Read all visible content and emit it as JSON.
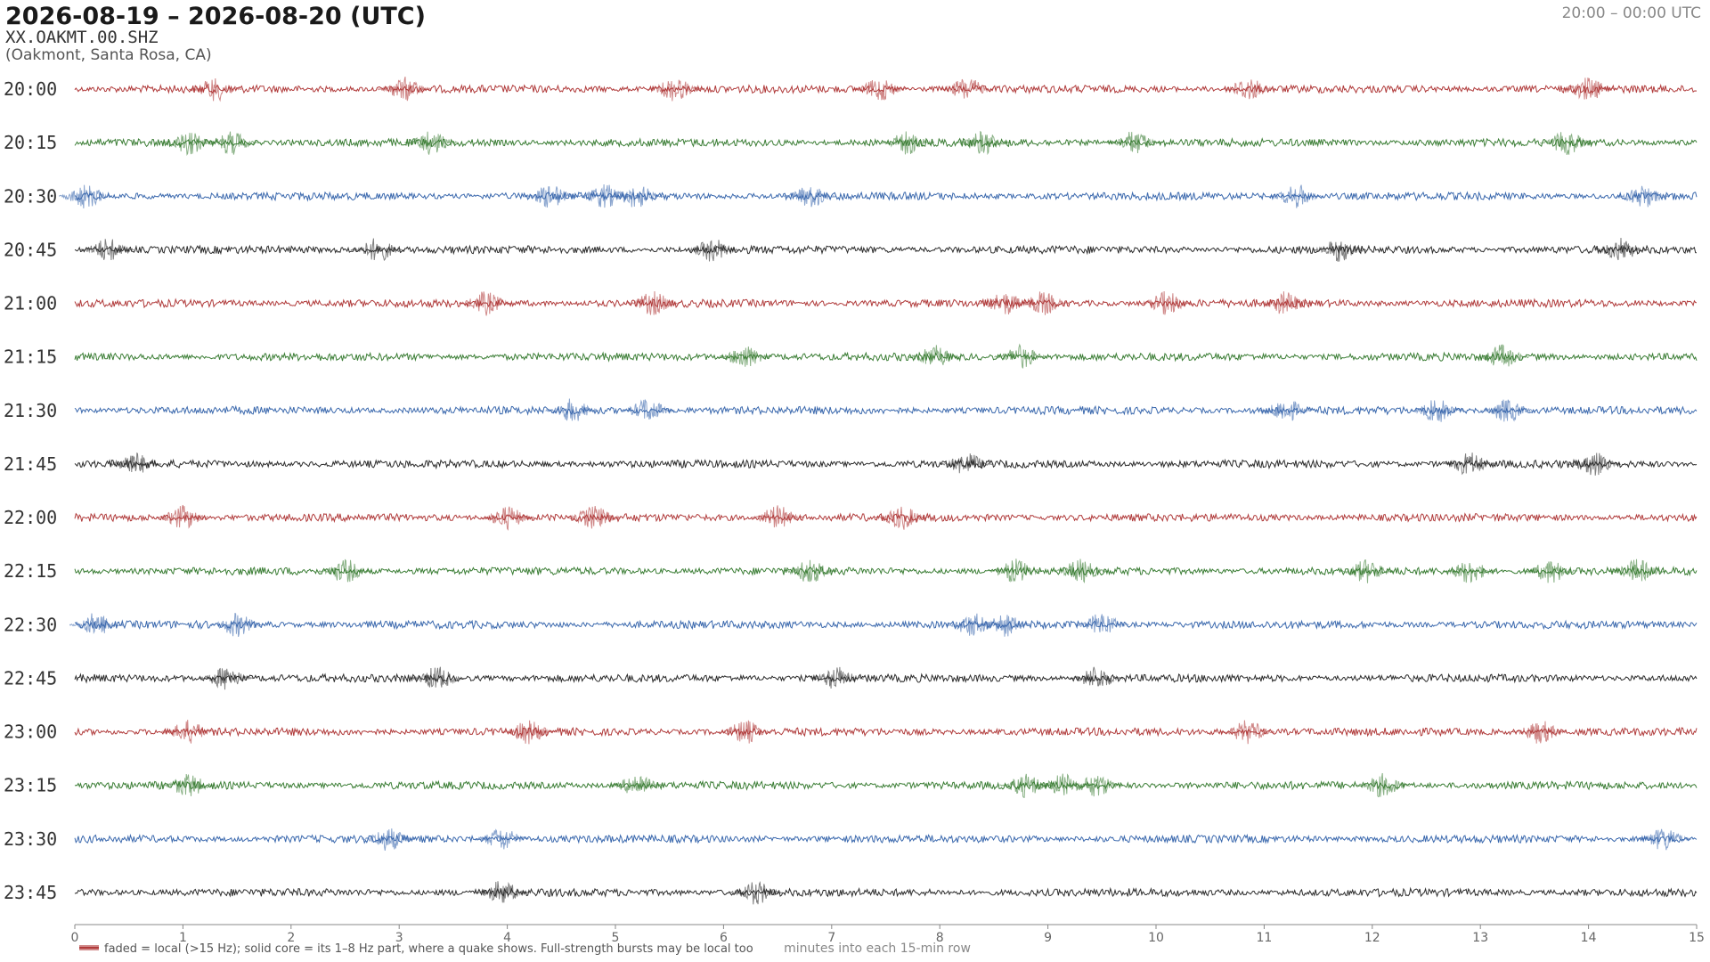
{
  "chart_data": {
    "type": "helicorder",
    "title": "2026-08-19 – 2026-08-20  (UTC)",
    "station": "XX.OAKMT.00.SHZ",
    "location": "(Oakmont, Santa Rosa, CA)",
    "time_range": "20:00 – 00:00 UTC",
    "xlabel": "minutes into each 15-min row",
    "legend": "faded = local (>15 Hz); solid core = its 1–8 Hz part, where a quake shows. Full-strength bursts may be local too",
    "xlim": [
      0,
      15
    ],
    "xticks": [
      0,
      1,
      2,
      3,
      4,
      5,
      6,
      7,
      8,
      9,
      10,
      11,
      12,
      13,
      14,
      15
    ],
    "series": [
      {
        "name": "20:00",
        "color": "#b03a3a",
        "events": [
          1.3,
          3.05,
          5.55,
          7.45,
          8.25,
          10.85,
          14.0
        ]
      },
      {
        "name": "20:15",
        "color": "#3a7d34",
        "events": [
          1.05,
          1.45,
          3.3,
          7.7,
          8.4,
          9.8,
          13.8
        ]
      },
      {
        "name": "20:30",
        "color": "#3a68ad",
        "events": [
          0.1,
          4.4,
          4.9,
          5.2,
          6.8,
          11.3,
          14.5
        ]
      },
      {
        "name": "20:45",
        "color": "#2b2b2b",
        "events": [
          0.3,
          2.8,
          5.9,
          11.7,
          14.3
        ]
      },
      {
        "name": "21:00",
        "color": "#b03a3a",
        "events": [
          3.8,
          5.35,
          8.6,
          8.95,
          10.1,
          11.2
        ]
      },
      {
        "name": "21:15",
        "color": "#3a7d34",
        "events": [
          6.2,
          7.95,
          8.75,
          13.2
        ]
      },
      {
        "name": "21:30",
        "color": "#3a68ad",
        "events": [
          4.6,
          5.3,
          11.2,
          12.6,
          13.25
        ]
      },
      {
        "name": "21:45",
        "color": "#2b2b2b",
        "events": [
          0.55,
          8.25,
          12.9,
          14.05
        ]
      },
      {
        "name": "22:00",
        "color": "#b03a3a",
        "events": [
          1.0,
          4.0,
          4.8,
          6.5,
          7.65
        ]
      },
      {
        "name": "22:15",
        "color": "#3a7d34",
        "events": [
          2.5,
          6.8,
          8.7,
          9.3,
          11.95,
          12.9,
          13.65,
          14.45
        ]
      },
      {
        "name": "22:30",
        "color": "#3a68ad",
        "events": [
          0.2,
          1.5,
          8.3,
          8.6,
          9.5
        ]
      },
      {
        "name": "22:45",
        "color": "#2b2b2b",
        "events": [
          1.4,
          3.35,
          7.05,
          9.45
        ]
      },
      {
        "name": "23:00",
        "color": "#b03a3a",
        "events": [
          1.05,
          4.2,
          6.2,
          10.85,
          13.55
        ]
      },
      {
        "name": "23:15",
        "color": "#3a7d34",
        "events": [
          1.05,
          5.2,
          8.8,
          9.15,
          9.45,
          12.1
        ]
      },
      {
        "name": "23:30",
        "color": "#3a68ad",
        "events": [
          2.9,
          3.95,
          14.7
        ]
      },
      {
        "name": "23:45",
        "color": "#2b2b2b",
        "events": [
          3.95,
          6.3
        ]
      }
    ]
  }
}
